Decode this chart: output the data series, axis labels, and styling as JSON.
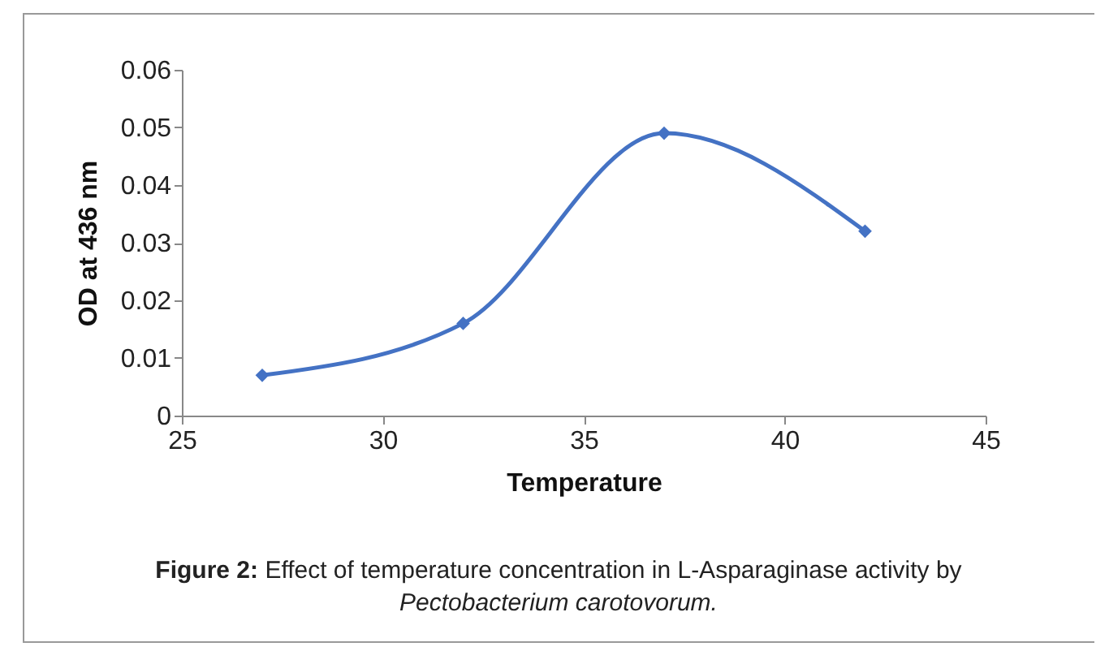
{
  "chart_data": {
    "type": "line",
    "xlabel": "Temperature",
    "ylabel": "OD at 436 nm",
    "x": [
      27,
      32,
      37,
      42
    ],
    "series": [
      {
        "color": "#4472c4",
        "values": [
          0.007,
          0.016,
          0.049,
          0.032
        ]
      }
    ],
    "xlim": [
      25,
      45
    ],
    "xticks": [
      25,
      30,
      35,
      40,
      45
    ],
    "ylim": [
      0,
      0.06
    ],
    "yticks": [
      0,
      0.01,
      0.02,
      0.03,
      0.04,
      0.05,
      0.06
    ],
    "grid": false,
    "legend": false,
    "marker": "diamond",
    "line_style": "solid",
    "annotations": [
      "Figure 2:",
      "Effect of temperature concentration in L-Asparaginase activity by",
      "Pectobacterium carotovorum."
    ]
  }
}
